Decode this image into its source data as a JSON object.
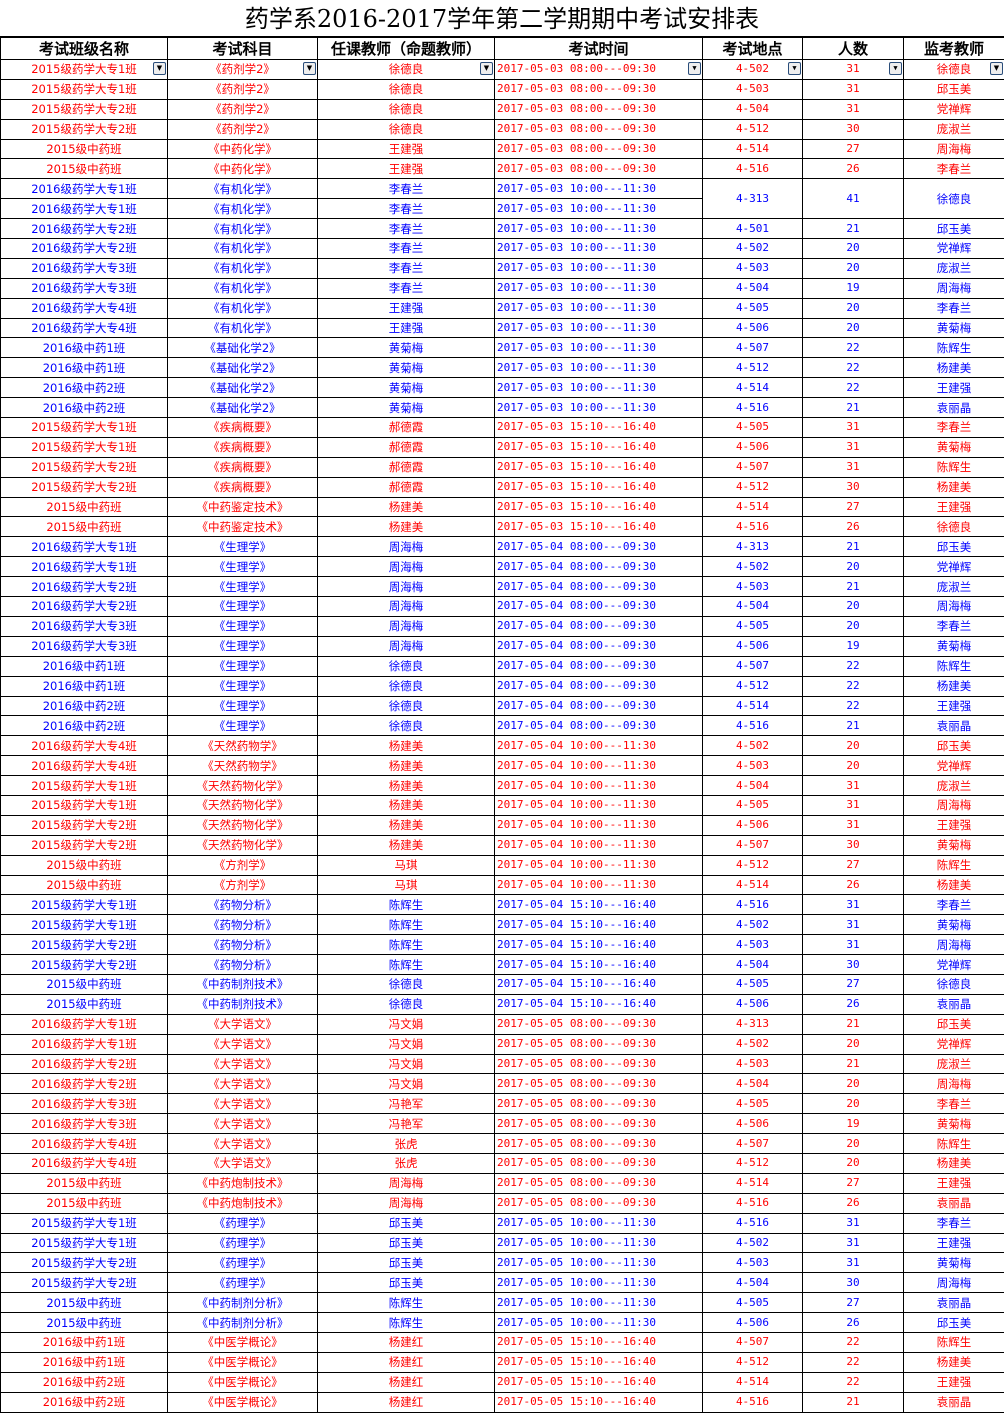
{
  "title": "药学系2016-2017学年第二学期期中考试安排表",
  "headers": [
    "考试班级名称",
    "考试科目",
    "任课教师（命题教师）",
    "考试时间",
    "考试地点",
    "人数",
    "监考教师"
  ],
  "colors": {
    "red": "#ff0000",
    "blue": "#0000ff"
  },
  "filter_icon": "dropdown-arrow-icon",
  "rows": [
    {
      "c": "red",
      "cls": "2015级药学大专1班",
      "subj": "《药剂学2》",
      "teacher": "徐德良",
      "time": "2017-05-03   08:00---09:30",
      "loc": "4-502",
      "n": "31",
      "proctor": "徐德良"
    },
    {
      "c": "red",
      "cls": "2015级药学大专1班",
      "subj": "《药剂学2》",
      "teacher": "徐德良",
      "time": "2017-05-03   08:00---09:30",
      "loc": "4-503",
      "n": "31",
      "proctor": "邱玉美"
    },
    {
      "c": "red",
      "cls": "2015级药学大专2班",
      "subj": "《药剂学2》",
      "teacher": "徐德良",
      "time": "2017-05-03   08:00---09:30",
      "loc": "4-504",
      "n": "31",
      "proctor": "党禅辉"
    },
    {
      "c": "red",
      "cls": "2015级药学大专2班",
      "subj": "《药剂学2》",
      "teacher": "徐德良",
      "time": "2017-05-03   08:00---09:30",
      "loc": "4-512",
      "n": "30",
      "proctor": "庞淑兰"
    },
    {
      "c": "red",
      "cls": "2015级中药班",
      "subj": "《中药化学》",
      "teacher": "王建强",
      "time": "2017-05-03   08:00---09:30",
      "loc": "4-514",
      "n": "27",
      "proctor": "周海梅"
    },
    {
      "c": "red",
      "cls": "2015级中药班",
      "subj": "《中药化学》",
      "teacher": "王建强",
      "time": "2017-05-03   08:00---09:30",
      "loc": "4-516",
      "n": "26",
      "proctor": "李春兰"
    },
    {
      "c": "blue",
      "cls": "2016级药学大专1班",
      "subj": "《有机化学》",
      "teacher": "李春兰",
      "time": "2017-05-03   10:00---11:30",
      "loc": "4-313",
      "n": "41",
      "proctor": "徐德良",
      "span": 2
    },
    {
      "c": "blue",
      "cls": "2016级药学大专1班",
      "subj": "《有机化学》",
      "teacher": "李春兰",
      "time": "2017-05-03   10:00---11:30",
      "merged": true
    },
    {
      "c": "blue",
      "cls": "2016级药学大专2班",
      "subj": "《有机化学》",
      "teacher": "李春兰",
      "time": "2017-05-03   10:00---11:30",
      "loc": "4-501",
      "n": "21",
      "proctor": "邱玉美"
    },
    {
      "c": "blue",
      "cls": "2016级药学大专2班",
      "subj": "《有机化学》",
      "teacher": "李春兰",
      "time": "2017-05-03   10:00---11:30",
      "loc": "4-502",
      "n": "20",
      "proctor": "党禅辉"
    },
    {
      "c": "blue",
      "cls": "2016级药学大专3班",
      "subj": "《有机化学》",
      "teacher": "李春兰",
      "time": "2017-05-03   10:00---11:30",
      "loc": "4-503",
      "n": "20",
      "proctor": "庞淑兰"
    },
    {
      "c": "blue",
      "cls": "2016级药学大专3班",
      "subj": "《有机化学》",
      "teacher": "李春兰",
      "time": "2017-05-03   10:00---11:30",
      "loc": "4-504",
      "n": "19",
      "proctor": "周海梅"
    },
    {
      "c": "blue",
      "cls": "2016级药学大专4班",
      "subj": "《有机化学》",
      "teacher": "王建强",
      "time": "2017-05-03   10:00---11:30",
      "loc": "4-505",
      "n": "20",
      "proctor": "李春兰"
    },
    {
      "c": "blue",
      "cls": "2016级药学大专4班",
      "subj": "《有机化学》",
      "teacher": "王建强",
      "time": "2017-05-03   10:00---11:30",
      "loc": "4-506",
      "n": "20",
      "proctor": "黄菊梅"
    },
    {
      "c": "blue",
      "cls": "2016级中药1班",
      "subj": "《基础化学2》",
      "teacher": "黄菊梅",
      "time": "2017-05-03   10:00---11:30",
      "loc": "4-507",
      "n": "22",
      "proctor": "陈辉生"
    },
    {
      "c": "blue",
      "cls": "2016级中药1班",
      "subj": "《基础化学2》",
      "teacher": "黄菊梅",
      "time": "2017-05-03   10:00---11:30",
      "loc": "4-512",
      "n": "22",
      "proctor": "杨建美"
    },
    {
      "c": "blue",
      "cls": "2016级中药2班",
      "subj": "《基础化学2》",
      "teacher": "黄菊梅",
      "time": "2017-05-03   10:00---11:30",
      "loc": "4-514",
      "n": "22",
      "proctor": "王建强"
    },
    {
      "c": "blue",
      "cls": "2016级中药2班",
      "subj": "《基础化学2》",
      "teacher": "黄菊梅",
      "time": "2017-05-03   10:00---11:30",
      "loc": "4-516",
      "n": "21",
      "proctor": "袁丽晶"
    },
    {
      "c": "red",
      "cls": "2015级药学大专1班",
      "subj": "《疾病概要》",
      "teacher": "郝德霞",
      "time": "2017-05-03   15:10---16:40",
      "loc": "4-505",
      "n": "31",
      "proctor": "李春兰"
    },
    {
      "c": "red",
      "cls": "2015级药学大专1班",
      "subj": "《疾病概要》",
      "teacher": "郝德霞",
      "time": "2017-05-03   15:10---16:40",
      "loc": "4-506",
      "n": "31",
      "proctor": "黄菊梅"
    },
    {
      "c": "red",
      "cls": "2015级药学大专2班",
      "subj": "《疾病概要》",
      "teacher": "郝德霞",
      "time": "2017-05-03   15:10---16:40",
      "loc": "4-507",
      "n": "31",
      "proctor": "陈辉生"
    },
    {
      "c": "red",
      "cls": "2015级药学大专2班",
      "subj": "《疾病概要》",
      "teacher": "郝德霞",
      "time": "2017-05-03   15:10---16:40",
      "loc": "4-512",
      "n": "30",
      "proctor": "杨建美"
    },
    {
      "c": "red",
      "cls": "2015级中药班",
      "subj": "《中药鉴定技术》",
      "teacher": "杨建美",
      "time": "2017-05-03   15:10---16:40",
      "loc": "4-514",
      "n": "27",
      "proctor": "王建强"
    },
    {
      "c": "red",
      "cls": "2015级中药班",
      "subj": "《中药鉴定技术》",
      "teacher": "杨建美",
      "time": "2017-05-03   15:10---16:40",
      "loc": "4-516",
      "n": "26",
      "proctor": "徐德良"
    },
    {
      "c": "blue",
      "cls": "2016级药学大专1班",
      "subj": "《生理学》",
      "teacher": "周海梅",
      "time": "2017-05-04   08:00---09:30",
      "loc": "4-313",
      "n": "21",
      "proctor": "邱玉美"
    },
    {
      "c": "blue",
      "cls": "2016级药学大专1班",
      "subj": "《生理学》",
      "teacher": "周海梅",
      "time": "2017-05-04   08:00---09:30",
      "loc": "4-502",
      "n": "20",
      "proctor": "党禅辉"
    },
    {
      "c": "blue",
      "cls": "2016级药学大专2班",
      "subj": "《生理学》",
      "teacher": "周海梅",
      "time": "2017-05-04   08:00---09:30",
      "loc": "4-503",
      "n": "21",
      "proctor": "庞淑兰"
    },
    {
      "c": "blue",
      "cls": "2016级药学大专2班",
      "subj": "《生理学》",
      "teacher": "周海梅",
      "time": "2017-05-04   08:00---09:30",
      "loc": "4-504",
      "n": "20",
      "proctor": "周海梅"
    },
    {
      "c": "blue",
      "cls": "2016级药学大专3班",
      "subj": "《生理学》",
      "teacher": "周海梅",
      "time": "2017-05-04   08:00---09:30",
      "loc": "4-505",
      "n": "20",
      "proctor": "李春兰"
    },
    {
      "c": "blue",
      "cls": "2016级药学大专3班",
      "subj": "《生理学》",
      "teacher": "周海梅",
      "time": "2017-05-04   08:00---09:30",
      "loc": "4-506",
      "n": "19",
      "proctor": "黄菊梅"
    },
    {
      "c": "blue",
      "cls": "2016级中药1班",
      "subj": "《生理学》",
      "teacher": "徐德良",
      "time": "2017-05-04   08:00---09:30",
      "loc": "4-507",
      "n": "22",
      "proctor": "陈辉生"
    },
    {
      "c": "blue",
      "cls": "2016级中药1班",
      "subj": "《生理学》",
      "teacher": "徐德良",
      "time": "2017-05-04   08:00---09:30",
      "loc": "4-512",
      "n": "22",
      "proctor": "杨建美"
    },
    {
      "c": "blue",
      "cls": "2016级中药2班",
      "subj": "《生理学》",
      "teacher": "徐德良",
      "time": "2017-05-04   08:00---09:30",
      "loc": "4-514",
      "n": "22",
      "proctor": "王建强"
    },
    {
      "c": "blue",
      "cls": "2016级中药2班",
      "subj": "《生理学》",
      "teacher": "徐德良",
      "time": "2017-05-04   08:00---09:30",
      "loc": "4-516",
      "n": "21",
      "proctor": "袁丽晶"
    },
    {
      "c": "red",
      "cls": "2016级药学大专4班",
      "subj": "《天然药物学》",
      "teacher": "杨建美",
      "time": "2017-05-04   10:00---11:30",
      "loc": "4-502",
      "n": "20",
      "proctor": "邱玉美"
    },
    {
      "c": "red",
      "cls": "2016级药学大专4班",
      "subj": "《天然药物学》",
      "teacher": "杨建美",
      "time": "2017-05-04   10:00---11:30",
      "loc": "4-503",
      "n": "20",
      "proctor": "党禅辉"
    },
    {
      "c": "red",
      "cls": "2015级药学大专1班",
      "subj": "《天然药物化学》",
      "teacher": "杨建美",
      "time": "2017-05-04   10:00---11:30",
      "loc": "4-504",
      "n": "31",
      "proctor": "庞淑兰"
    },
    {
      "c": "red",
      "cls": "2015级药学大专1班",
      "subj": "《天然药物化学》",
      "teacher": "杨建美",
      "time": "2017-05-04   10:00---11:30",
      "loc": "4-505",
      "n": "31",
      "proctor": "周海梅"
    },
    {
      "c": "red",
      "cls": "2015级药学大专2班",
      "subj": "《天然药物化学》",
      "teacher": "杨建美",
      "time": "2017-05-04   10:00---11:30",
      "loc": "4-506",
      "n": "31",
      "proctor": "王建强"
    },
    {
      "c": "red",
      "cls": "2015级药学大专2班",
      "subj": "《天然药物化学》",
      "teacher": "杨建美",
      "time": "2017-05-04   10:00---11:30",
      "loc": "4-507",
      "n": "30",
      "proctor": "黄菊梅"
    },
    {
      "c": "red",
      "cls": "2015级中药班",
      "subj": "《方剂学》",
      "teacher": "马琪",
      "time": "2017-05-04   10:00---11:30",
      "loc": "4-512",
      "n": "27",
      "proctor": "陈辉生"
    },
    {
      "c": "red",
      "cls": "2015级中药班",
      "subj": "《方剂学》",
      "teacher": "马琪",
      "time": "2017-05-04   10:00---11:30",
      "loc": "4-514",
      "n": "26",
      "proctor": "杨建美"
    },
    {
      "c": "blue",
      "cls": "2015级药学大专1班",
      "subj": "《药物分析》",
      "teacher": "陈辉生",
      "time": "2017-05-04   15:10---16:40",
      "loc": "4-516",
      "n": "31",
      "proctor": "李春兰"
    },
    {
      "c": "blue",
      "cls": "2015级药学大专1班",
      "subj": "《药物分析》",
      "teacher": "陈辉生",
      "time": "2017-05-04   15:10---16:40",
      "loc": "4-502",
      "n": "31",
      "proctor": "黄菊梅"
    },
    {
      "c": "blue",
      "cls": "2015级药学大专2班",
      "subj": "《药物分析》",
      "teacher": "陈辉生",
      "time": "2017-05-04   15:10---16:40",
      "loc": "4-503",
      "n": "31",
      "proctor": "周海梅"
    },
    {
      "c": "blue",
      "cls": "2015级药学大专2班",
      "subj": "《药物分析》",
      "teacher": "陈辉生",
      "time": "2017-05-04   15:10---16:40",
      "loc": "4-504",
      "n": "30",
      "proctor": "党禅辉"
    },
    {
      "c": "blue",
      "cls": "2015级中药班",
      "subj": "《中药制剂技术》",
      "teacher": "徐德良",
      "time": "2017-05-04   15:10---16:40",
      "loc": "4-505",
      "n": "27",
      "proctor": "徐德良"
    },
    {
      "c": "blue",
      "cls": "2015级中药班",
      "subj": "《中药制剂技术》",
      "teacher": "徐德良",
      "time": "2017-05-04   15:10---16:40",
      "loc": "4-506",
      "n": "26",
      "proctor": "袁丽晶"
    },
    {
      "c": "red",
      "cls": "2016级药学大专1班",
      "subj": "《大学语文》",
      "teacher": "冯文娟",
      "time": "2017-05-05   08:00---09:30",
      "loc": "4-313",
      "n": "21",
      "proctor": "邱玉美"
    },
    {
      "c": "red",
      "cls": "2016级药学大专1班",
      "subj": "《大学语文》",
      "teacher": "冯文娟",
      "time": "2017-05-05   08:00---09:30",
      "loc": "4-502",
      "n": "20",
      "proctor": "党禅辉"
    },
    {
      "c": "red",
      "cls": "2016级药学大专2班",
      "subj": "《大学语文》",
      "teacher": "冯文娟",
      "time": "2017-05-05   08:00---09:30",
      "loc": "4-503",
      "n": "21",
      "proctor": "庞淑兰"
    },
    {
      "c": "red",
      "cls": "2016级药学大专2班",
      "subj": "《大学语文》",
      "teacher": "冯文娟",
      "time": "2017-05-05   08:00---09:30",
      "loc": "4-504",
      "n": "20",
      "proctor": "周海梅"
    },
    {
      "c": "red",
      "cls": "2016级药学大专3班",
      "subj": "《大学语文》",
      "teacher": "冯艳军",
      "time": "2017-05-05   08:00---09:30",
      "loc": "4-505",
      "n": "20",
      "proctor": "李春兰"
    },
    {
      "c": "red",
      "cls": "2016级药学大专3班",
      "subj": "《大学语文》",
      "teacher": "冯艳军",
      "time": "2017-05-05   08:00---09:30",
      "loc": "4-506",
      "n": "19",
      "proctor": "黄菊梅"
    },
    {
      "c": "red",
      "cls": "2016级药学大专4班",
      "subj": "《大学语文》",
      "teacher": "张虎",
      "time": "2017-05-05   08:00---09:30",
      "loc": "4-507",
      "n": "20",
      "proctor": "陈辉生"
    },
    {
      "c": "red",
      "cls": "2016级药学大专4班",
      "subj": "《大学语文》",
      "teacher": "张虎",
      "time": "2017-05-05   08:00---09:30",
      "loc": "4-512",
      "n": "20",
      "proctor": "杨建美"
    },
    {
      "c": "red",
      "cls": "2015级中药班",
      "subj": "《中药炮制技术》",
      "teacher": "周海梅",
      "time": "2017-05-05   08:00---09:30",
      "loc": "4-514",
      "n": "27",
      "proctor": "王建强"
    },
    {
      "c": "red",
      "cls": "2015级中药班",
      "subj": "《中药炮制技术》",
      "teacher": "周海梅",
      "time": "2017-05-05   08:00---09:30",
      "loc": "4-516",
      "n": "26",
      "proctor": "袁丽晶"
    },
    {
      "c": "blue",
      "cls": "2015级药学大专1班",
      "subj": "《药理学》",
      "teacher": "邱玉美",
      "time": "2017-05-05   10:00---11:30",
      "loc": "4-516",
      "n": "31",
      "proctor": "李春兰"
    },
    {
      "c": "blue",
      "cls": "2015级药学大专1班",
      "subj": "《药理学》",
      "teacher": "邱玉美",
      "time": "2017-05-05   10:00---11:30",
      "loc": "4-502",
      "n": "31",
      "proctor": "王建强"
    },
    {
      "c": "blue",
      "cls": "2015级药学大专2班",
      "subj": "《药理学》",
      "teacher": "邱玉美",
      "time": "2017-05-05   10:00---11:30",
      "loc": "4-503",
      "n": "31",
      "proctor": "黄菊梅"
    },
    {
      "c": "blue",
      "cls": "2015级药学大专2班",
      "subj": "《药理学》",
      "teacher": "邱玉美",
      "time": "2017-05-05   10:00---11:30",
      "loc": "4-504",
      "n": "30",
      "proctor": "周海梅"
    },
    {
      "c": "blue",
      "cls": "2015级中药班",
      "subj": "《中药制剂分析》",
      "teacher": "陈辉生",
      "time": "2017-05-05   10:00---11:30",
      "loc": "4-505",
      "n": "27",
      "proctor": "袁丽晶"
    },
    {
      "c": "blue",
      "cls": "2015级中药班",
      "subj": "《中药制剂分析》",
      "teacher": "陈辉生",
      "time": "2017-05-05   10:00---11:30",
      "loc": "4-506",
      "n": "26",
      "proctor": "邱玉美"
    },
    {
      "c": "red",
      "cls": "2016级中药1班",
      "subj": "《中医学概论》",
      "teacher": "杨建红",
      "time": "2017-05-05   15:10---16:40",
      "loc": "4-507",
      "n": "22",
      "proctor": "陈辉生"
    },
    {
      "c": "red",
      "cls": "2016级中药1班",
      "subj": "《中医学概论》",
      "teacher": "杨建红",
      "time": "2017-05-05   15:10---16:40",
      "loc": "4-512",
      "n": "22",
      "proctor": "杨建美"
    },
    {
      "c": "red",
      "cls": "2016级中药2班",
      "subj": "《中医学概论》",
      "teacher": "杨建红",
      "time": "2017-05-05   15:10---16:40",
      "loc": "4-514",
      "n": "22",
      "proctor": "王建强"
    },
    {
      "c": "red",
      "cls": "2016级中药2班",
      "subj": "《中医学概论》",
      "teacher": "杨建红",
      "time": "2017-05-05   15:10---16:40",
      "loc": "4-516",
      "n": "21",
      "proctor": "袁丽晶"
    }
  ]
}
